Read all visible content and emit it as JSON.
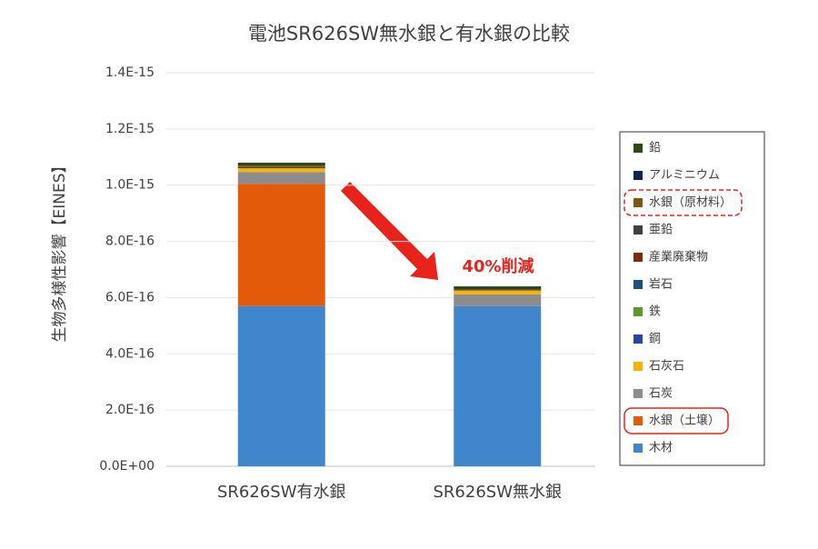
{
  "chart_data": {
    "type": "stacked_bar",
    "title": "電池SR626SW無水銀と有水銀の比較",
    "y_label": "生物多様性影響【EINES】",
    "annotation": "40%削減",
    "categories": [
      "SR626SW有水銀",
      "SR626SW無水銀"
    ],
    "ylim": [
      0,
      1.4e-15
    ],
    "yticks": [
      {
        "value": 0,
        "label": "0.0E+00"
      },
      {
        "value": 2e-16,
        "label": "2.0E-16"
      },
      {
        "value": 4e-16,
        "label": "4.0E-16"
      },
      {
        "value": 6e-16,
        "label": "6.0E-16"
      },
      {
        "value": 8e-16,
        "label": "8.0E-16"
      },
      {
        "value": 1e-15,
        "label": "1.0E-15"
      },
      {
        "value": 1.2e-15,
        "label": "1.2E-15"
      },
      {
        "value": 1.4e-15,
        "label": "1.4E-15"
      }
    ],
    "grid": true,
    "legend": "right",
    "series": [
      {
        "name": "木材",
        "color": "#3f86cc",
        "values": [
          5.7e-16,
          5.7e-16
        ]
      },
      {
        "name": "水銀（土壌）",
        "color": "#e35a0a",
        "values": [
          4.35e-16,
          0
        ]
      },
      {
        "name": "石炭",
        "color": "#8c8c8c",
        "values": [
          4.2e-17,
          4.2e-17
        ]
      },
      {
        "name": "石灰石",
        "color": "#f5b400",
        "values": [
          1.3e-17,
          1.3e-17
        ]
      },
      {
        "name": "鋼",
        "color": "#2446a8",
        "values": [
          0,
          0
        ]
      },
      {
        "name": "鉄",
        "color": "#5a9a2a",
        "values": [
          0,
          0
        ]
      },
      {
        "name": "岩石",
        "color": "#1f4e79",
        "values": [
          0,
          0
        ]
      },
      {
        "name": "産業廃棄物",
        "color": "#7f2a0a",
        "values": [
          2e-18,
          2e-18
        ]
      },
      {
        "name": "亜鉛",
        "color": "#404040",
        "values": [
          3e-18,
          3e-18
        ]
      },
      {
        "name": "水銀（原材料）",
        "color": "#7a5a10",
        "values": [
          5e-18,
          0
        ]
      },
      {
        "name": "アルミニウム",
        "color": "#0e2353",
        "values": [
          0,
          0
        ]
      },
      {
        "name": "鉛",
        "color": "#2d4a14",
        "values": [
          1e-17,
          1e-17
        ]
      }
    ]
  }
}
